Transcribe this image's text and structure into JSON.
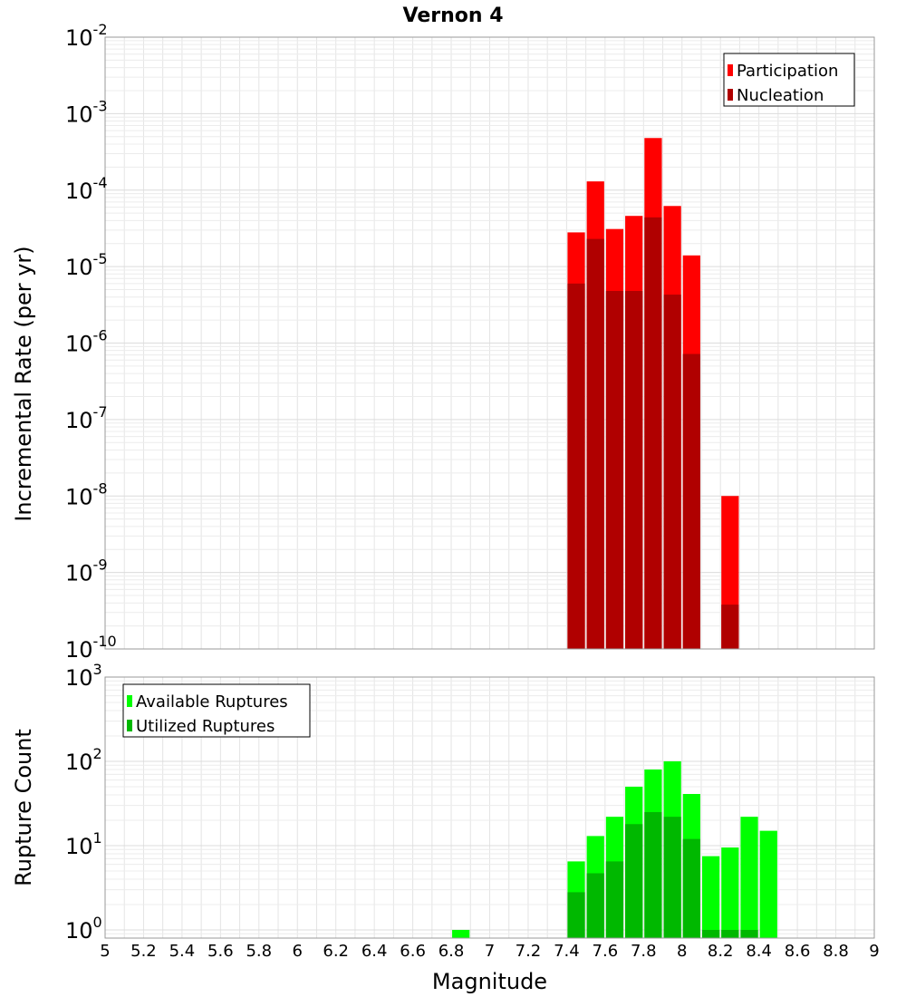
{
  "chart_data": [
    {
      "type": "bar",
      "title": "Vernon 4",
      "xlabel": "Magnitude",
      "ylabel": "Incremental Rate (per yr)",
      "xlim": [
        5,
        9
      ],
      "ylim": [
        1e-10,
        0.01
      ],
      "yscale": "log",
      "y_tick_exponents": [
        -10,
        -9,
        -8,
        -7,
        -6,
        -5,
        -4,
        -3,
        -2
      ],
      "grid": true,
      "legend_position": "top-right",
      "bin_width": 0.1,
      "series": [
        {
          "name": "Participation",
          "color": "#ff0000",
          "x": [
            7.45,
            7.55,
            7.65,
            7.75,
            7.85,
            7.95,
            8.05,
            8.25
          ],
          "values": [
            2.8e-05,
            0.00013,
            3.1e-05,
            4.6e-05,
            0.00048,
            6.2e-05,
            1.4e-05,
            1e-08
          ]
        },
        {
          "name": "Nucleation",
          "color": "#b00000",
          "x": [
            7.45,
            7.55,
            7.65,
            7.75,
            7.85,
            7.95,
            8.05,
            8.25
          ],
          "values": [
            6e-06,
            2.3e-05,
            4.8e-06,
            4.8e-06,
            4.4e-05,
            4.3e-06,
            7.2e-07,
            3.8e-10
          ]
        }
      ]
    },
    {
      "type": "bar",
      "title": "",
      "xlabel": "Magnitude",
      "ylabel": "Rupture Count",
      "xlim": [
        5,
        9
      ],
      "ylim": [
        0.8,
        1000
      ],
      "yscale": "log",
      "y_tick_exponents": [
        0,
        1,
        2,
        3
      ],
      "x_ticks": [
        5,
        5.2,
        5.4,
        5.6,
        5.8,
        6,
        6.2,
        6.4,
        6.6,
        6.8,
        7,
        7.2,
        7.4,
        7.6,
        7.8,
        8,
        8.2,
        8.4,
        8.6,
        8.8,
        9
      ],
      "x_tick_labels": [
        "5",
        "5.2",
        "5.4",
        "5.6",
        "5.8",
        "6",
        "6.2",
        "6.4",
        "6.6",
        "6.8",
        "7",
        "7.2",
        "7.4",
        "7.6",
        "7.8",
        "8",
        "8.2",
        "8.4",
        "8.6",
        "8.8",
        "9"
      ],
      "grid": true,
      "legend_position": "top-left",
      "bin_width": 0.1,
      "series": [
        {
          "name": "Available Ruptures",
          "color": "#00ff00",
          "x": [
            6.85,
            7.45,
            7.55,
            7.65,
            7.75,
            7.85,
            7.95,
            8.05,
            8.15,
            8.25,
            8.35,
            8.45
          ],
          "values": [
            1,
            6.5,
            13,
            22,
            50,
            80,
            100,
            41,
            7.5,
            9.5,
            22,
            15
          ]
        },
        {
          "name": "Utilized Ruptures",
          "color": "#00b800",
          "x": [
            7.45,
            7.55,
            7.65,
            7.75,
            7.85,
            7.95,
            8.05,
            8.15,
            8.25,
            8.35
          ],
          "values": [
            2.8,
            4.7,
            6.5,
            18,
            25,
            22,
            12,
            1,
            1,
            1
          ]
        }
      ]
    }
  ]
}
